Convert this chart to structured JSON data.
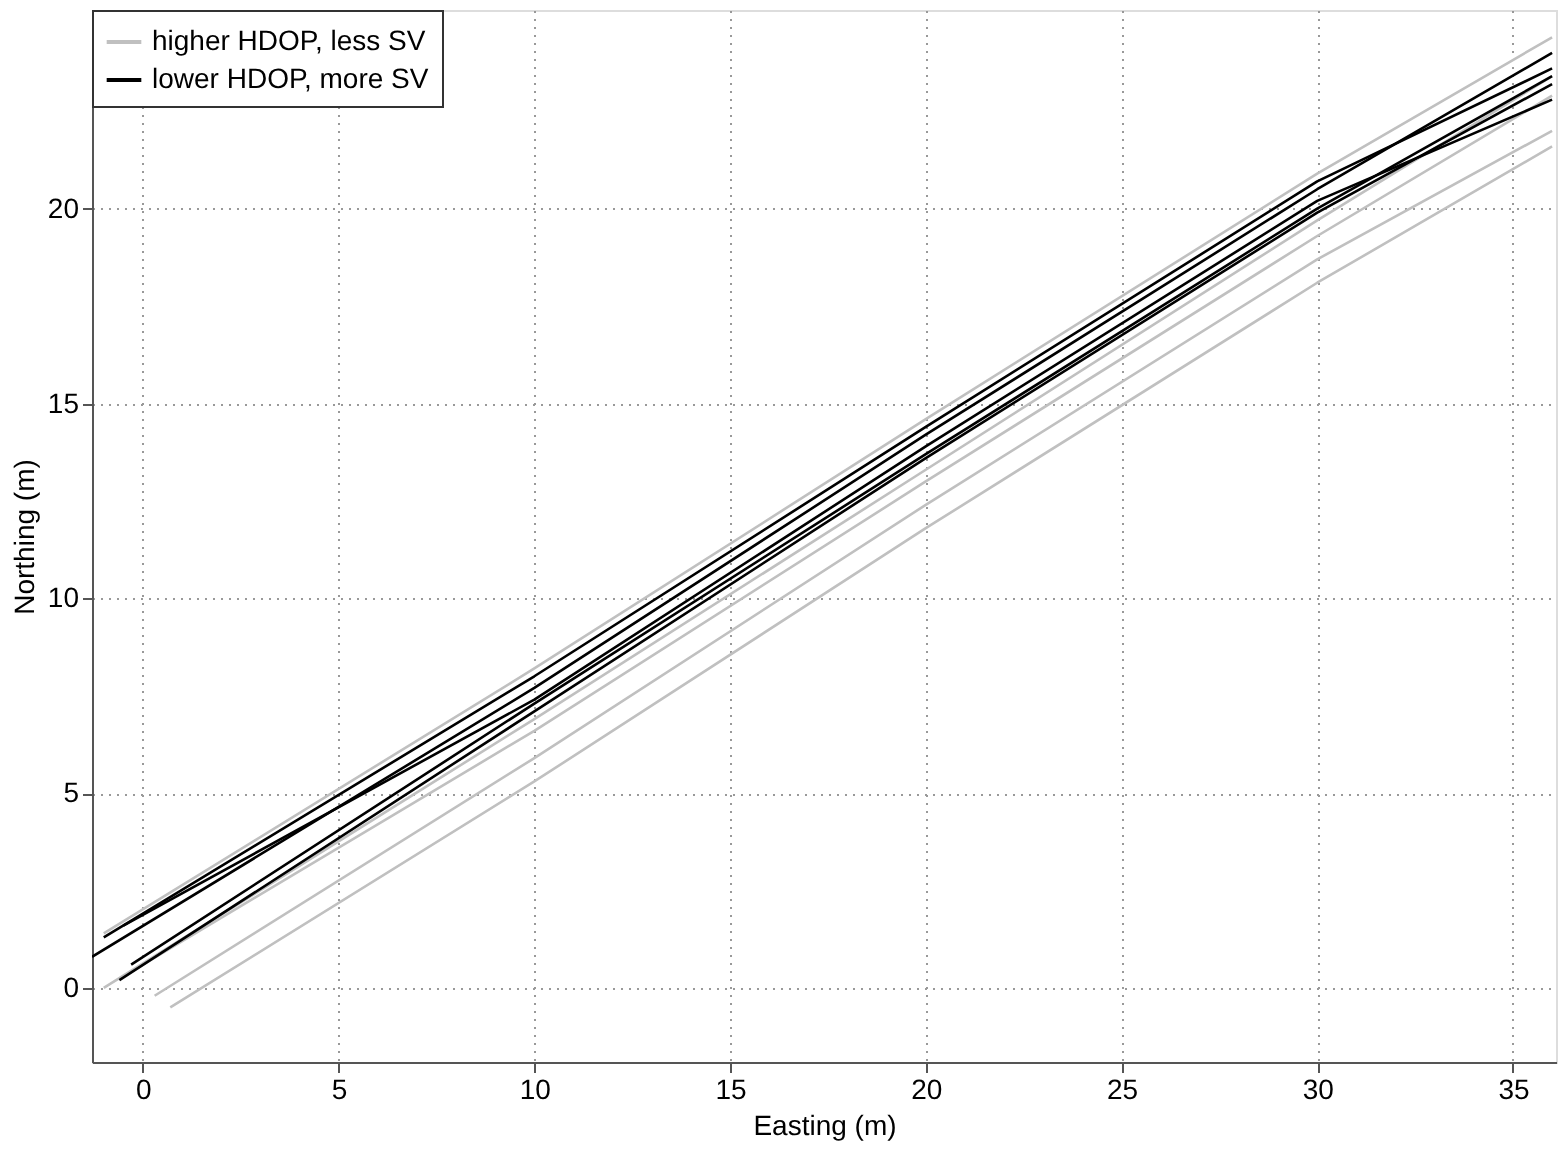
{
  "chart_data": {
    "type": "line",
    "xlabel": "Easting (m)",
    "ylabel": "Northing (m)",
    "xlim": [
      -1.3,
      36.1
    ],
    "ylim": [
      -1.9,
      25.1
    ],
    "xticks": [
      0,
      5,
      10,
      15,
      20,
      25,
      30,
      35
    ],
    "yticks": [
      0,
      5,
      10,
      15,
      20
    ],
    "grid": true,
    "legend": "top left",
    "marker": "none",
    "series": [
      {
        "name": "higher HDOP, less SV",
        "color": "#c0c0c0",
        "x": [
          -1.0,
          10,
          20,
          30,
          36
        ],
        "values": [
          0.0,
          6.9,
          13.3,
          19.7,
          23.4
        ]
      },
      {
        "color": "#c0c0c0",
        "x": [
          -1.0,
          10,
          20,
          30,
          36
        ],
        "values": [
          1.4,
          8.2,
          14.6,
          20.9,
          24.4
        ]
      },
      {
        "color": "#c0c0c0",
        "x": [
          0.7,
          10,
          20,
          30,
          36
        ],
        "values": [
          -0.5,
          5.3,
          11.8,
          18.1,
          21.6
        ]
      },
      {
        "color": "#c0c0c0",
        "x": [
          0.3,
          10,
          20,
          30,
          36
        ],
        "values": [
          -0.2,
          5.9,
          12.4,
          18.7,
          22.0
        ]
      },
      {
        "color": "#c0c0c0",
        "x": [
          -0.5,
          10,
          20,
          30,
          36
        ],
        "values": [
          0.3,
          6.6,
          13.0,
          19.3,
          22.9
        ]
      },
      {
        "name": "lower HDOP, more SV",
        "color": "#000000",
        "x": [
          -1.3,
          10,
          20,
          30,
          36
        ],
        "values": [
          0.8,
          7.7,
          14.2,
          20.5,
          24.0
        ]
      },
      {
        "color": "#000000",
        "x": [
          -1.0,
          10,
          20,
          30,
          36
        ],
        "values": [
          1.3,
          8.0,
          14.4,
          20.7,
          23.6
        ]
      },
      {
        "color": "#000000",
        "x": [
          -0.6,
          10,
          20,
          30,
          36
        ],
        "values": [
          0.2,
          7.1,
          13.6,
          19.9,
          23.2
        ]
      },
      {
        "color": "#000000",
        "x": [
          -0.5,
          10,
          20,
          30,
          36
        ],
        "values": [
          1.6,
          7.4,
          13.9,
          20.2,
          22.8
        ]
      },
      {
        "color": "#000000",
        "x": [
          -0.3,
          10,
          20,
          30,
          36
        ],
        "values": [
          0.6,
          7.3,
          13.7,
          20.0,
          23.4
        ]
      }
    ]
  }
}
